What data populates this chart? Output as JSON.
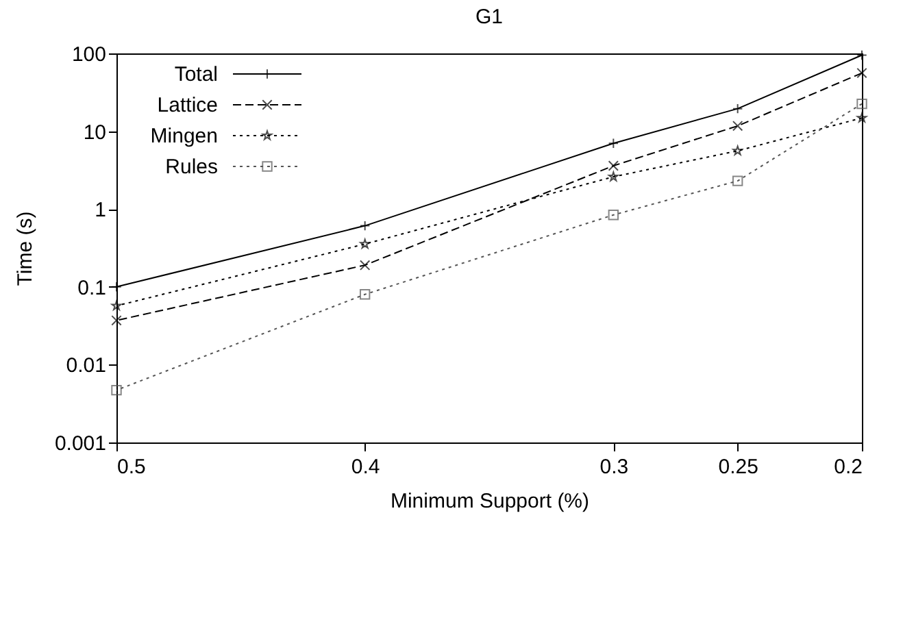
{
  "chart_data": {
    "type": "line",
    "title": "G1",
    "xlabel": "Minimum Support (%)",
    "ylabel": "Time (s)",
    "x": [
      0.5,
      0.4,
      0.3,
      0.25,
      0.2
    ],
    "xlim": [
      0.5,
      0.2
    ],
    "xticks": [
      0.5,
      0.4,
      0.3,
      0.25,
      0.2
    ],
    "ylim": [
      0.001,
      100
    ],
    "yticks": [
      0.001,
      0.01,
      0.1,
      1,
      10,
      100
    ],
    "log": "y",
    "legend": "top left",
    "series": [
      {
        "name": "Total",
        "color": "#000000",
        "marker": "cross",
        "line_style": "solid",
        "values": [
          0.1,
          0.61,
          7.0,
          19.5,
          95
        ]
      },
      {
        "name": "Lattice",
        "color": "#000000",
        "marker": "x",
        "line_style": "dashed",
        "values": [
          0.037,
          0.19,
          3.6,
          11.7,
          56
        ]
      },
      {
        "name": "Mingen",
        "color": "#000000",
        "marker": "star",
        "line_style": "dotted",
        "values": [
          0.057,
          0.355,
          2.6,
          5.6,
          14.8
        ]
      },
      {
        "name": "Rules",
        "color": "#555555",
        "marker": "square",
        "line_style": "dotted",
        "values": [
          0.0047,
          0.08,
          0.84,
          2.3,
          22.5
        ]
      }
    ]
  }
}
